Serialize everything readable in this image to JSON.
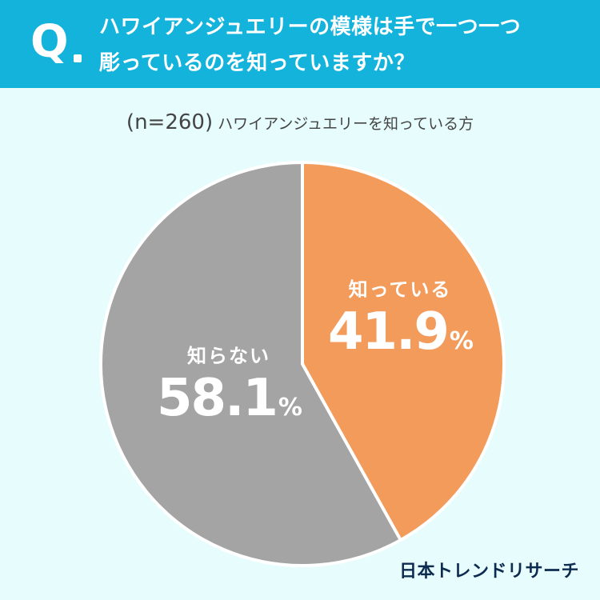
{
  "header": {
    "q_mark": "Q",
    "question_line1": "ハワイアンジュエリーの模様は手で一つ一つ",
    "question_line2": "彫っているのを知っていますか？"
  },
  "sample": {
    "n_label": "(n=260)",
    "description": "ハワイアンジュエリーを知っている方"
  },
  "chart_data": {
    "type": "pie",
    "title": "ハワイアンジュエリーの模様は手で一つ一つ彫っているのを知っていますか？",
    "categories": [
      "知っている",
      "知らない"
    ],
    "values": [
      41.9,
      58.1
    ],
    "unit": "%",
    "colors": [
      "#f39b5b",
      "#a4a4a4"
    ],
    "start_angle": "top",
    "direction": "clockwise"
  },
  "labels": [
    {
      "category": "知っている",
      "value": "41.9",
      "unit": "%"
    },
    {
      "category": "知らない",
      "value": "58.1",
      "unit": "%"
    }
  ],
  "brand": {
    "logo_text": "日本トレンドリサーチ"
  }
}
